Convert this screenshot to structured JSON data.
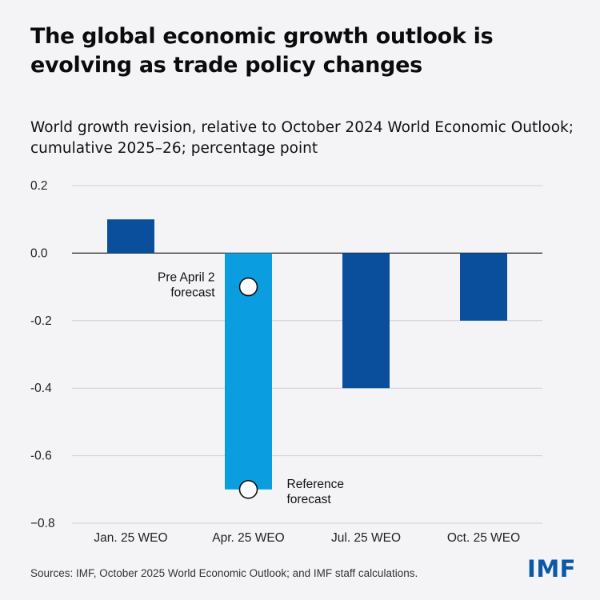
{
  "header": {
    "title": "The global economic growth outlook is evolving as trade policy changes",
    "subtitle": "World growth revision, relative to October 2024 World Economic Outlook; cumulative 2025–26; percentage point"
  },
  "chart_data": {
    "type": "bar",
    "categories": [
      "Jan. 25 WEO",
      "Apr. 25 WEO",
      "Jul. 25 WEO",
      "Oct. 25 WEO"
    ],
    "values": [
      0.1,
      -0.7,
      -0.4,
      -0.2
    ],
    "ylim": [
      -0.8,
      0.2
    ],
    "yticks": [
      0.2,
      0.0,
      -0.2,
      -0.4,
      -0.6,
      -0.8
    ],
    "ytick_labels": [
      "0.2",
      "0.0",
      "-0.2",
      "-0.4",
      "-0.6",
      "−0.8"
    ],
    "grid": true,
    "bar_colors": [
      "#0a4f9c",
      "#0a9ee0",
      "#0a4f9c",
      "#0a4f9c"
    ],
    "markers": [
      {
        "category": "Apr. 25 WEO",
        "value": -0.1,
        "label_lines": [
          "Pre April 2",
          "forecast"
        ],
        "label_side": "left"
      },
      {
        "category": "Apr. 25 WEO",
        "value": -0.7,
        "label_lines": [
          "Reference",
          "forecast"
        ],
        "label_side": "right"
      }
    ]
  },
  "footer": {
    "source": "Sources: IMF, October 2025 World Economic Outlook; and IMF staff calculations.",
    "logo": "IMF"
  },
  "colors": {
    "background": "#f4f4f7",
    "dark_bar": "#0a4f9c",
    "light_bar": "#0a9ee0",
    "logo": "#0a58a8"
  }
}
